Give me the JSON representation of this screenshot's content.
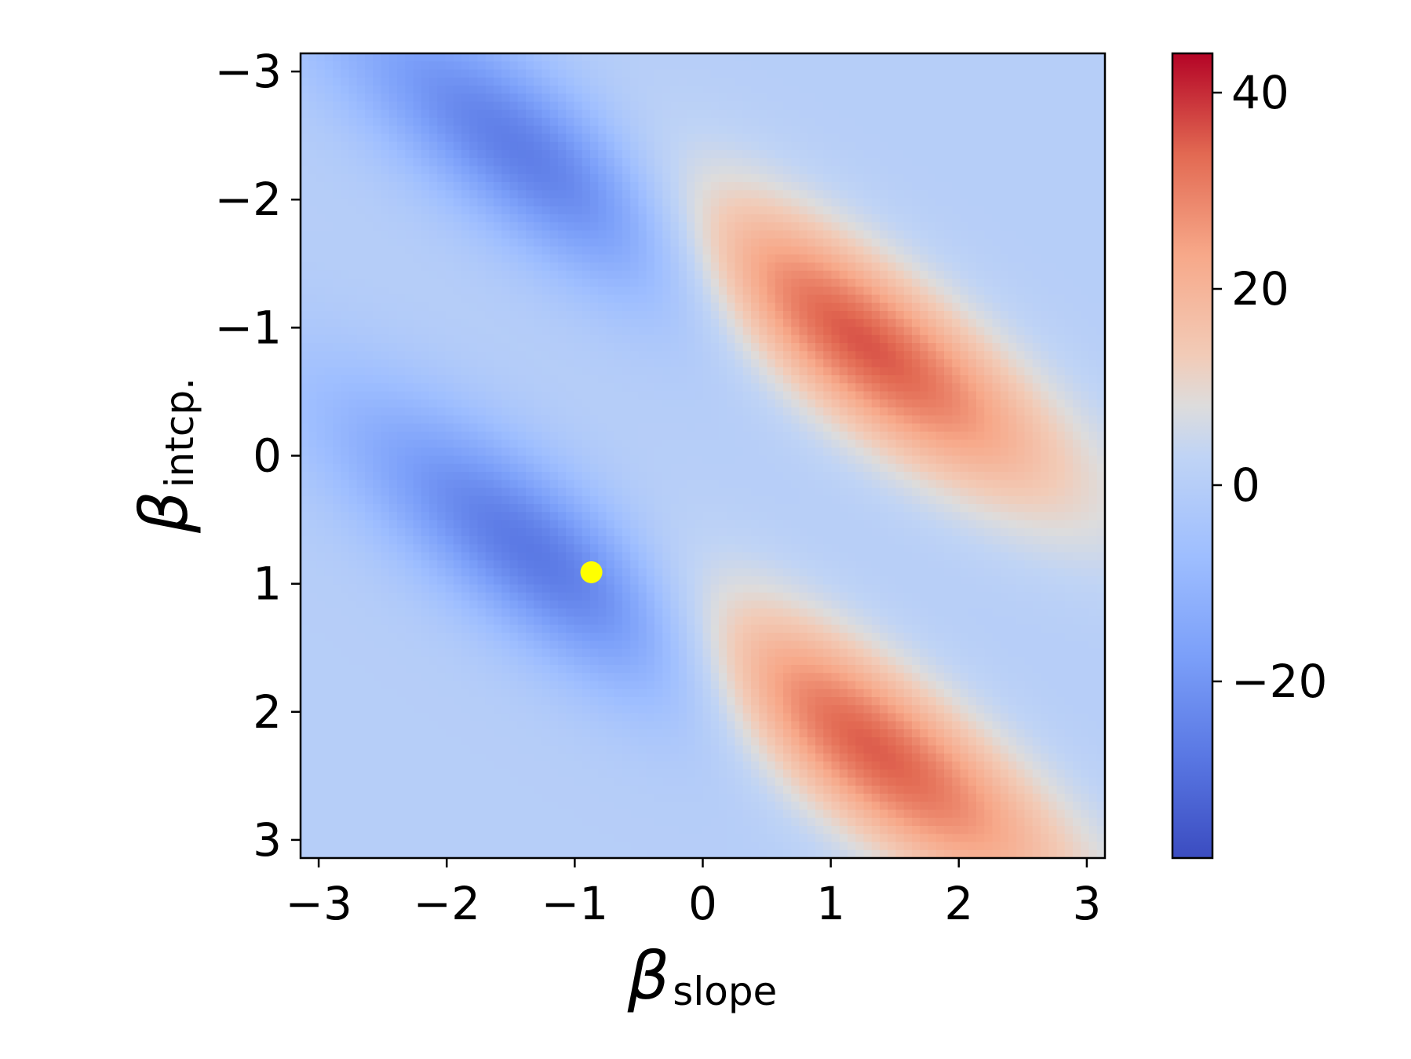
{
  "chart_data": {
    "type": "heatmap",
    "title": "",
    "xlabel": {
      "symbol": "β",
      "subscript": "slope"
    },
    "ylabel": {
      "symbol": "β",
      "subscript": "intcp."
    },
    "x_range": [
      -3.14159,
      3.14159
    ],
    "y_range": [
      -3.14159,
      3.14159
    ],
    "y_inverted": true,
    "x_ticks": [
      {
        "value": -3,
        "label": "−3"
      },
      {
        "value": -2,
        "label": "−2"
      },
      {
        "value": -1,
        "label": "−1"
      },
      {
        "value": 0,
        "label": "0"
      },
      {
        "value": 1,
        "label": "1"
      },
      {
        "value": 2,
        "label": "2"
      },
      {
        "value": 3,
        "label": "3"
      }
    ],
    "y_ticks": [
      {
        "value": -3,
        "label": "−3"
      },
      {
        "value": -2,
        "label": "−2"
      },
      {
        "value": -1,
        "label": "−1"
      },
      {
        "value": 0,
        "label": "0"
      },
      {
        "value": 1,
        "label": "1"
      },
      {
        "value": 2,
        "label": "2"
      },
      {
        "value": 3,
        "label": "3"
      }
    ],
    "colormap": "coolwarm",
    "color_range": [
      -38,
      44
    ],
    "colorbar_ticks": [
      {
        "value": 40,
        "label": "40"
      },
      {
        "value": 20,
        "label": "20"
      },
      {
        "value": 0,
        "label": "0"
      },
      {
        "value": -20,
        "label": "−20"
      }
    ],
    "grid_resolution": 100,
    "features": [
      {
        "kind": "minimum",
        "slope": -1.0,
        "intercept": -2.15,
        "value": -34
      },
      {
        "kind": "maximum",
        "slope": 0.95,
        "intercept": -1.05,
        "value": 43
      },
      {
        "kind": "minimum",
        "slope": -0.9,
        "intercept": 1.0,
        "value": -36
      },
      {
        "kind": "maximum",
        "slope": 1.0,
        "intercept": 2.1,
        "value": 43
      }
    ],
    "markers": [
      {
        "slope": -0.87,
        "intercept": 0.91,
        "color": "#ffff00"
      }
    ],
    "grid": false,
    "legend": "none"
  }
}
